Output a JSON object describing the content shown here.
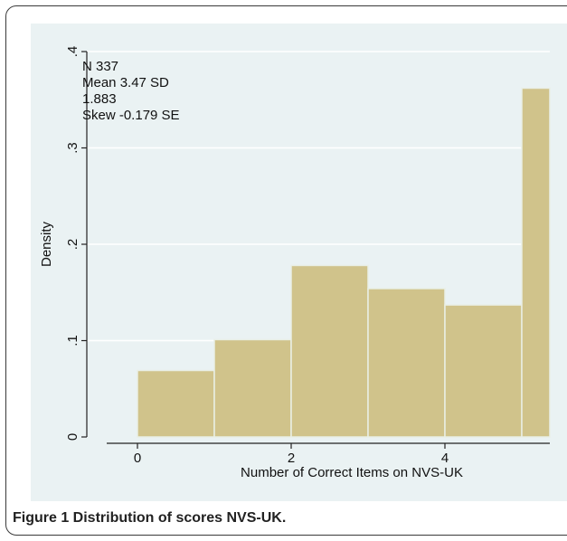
{
  "chart_data": {
    "type": "bar",
    "title": "",
    "xlabel": "Number of Correct Items on NVS-UK",
    "ylabel": "Density",
    "bins": [
      {
        "from": 0,
        "to": 1,
        "value": 0.069
      },
      {
        "from": 1,
        "to": 2,
        "value": 0.101
      },
      {
        "from": 2,
        "to": 3,
        "value": 0.178
      },
      {
        "from": 3,
        "to": 4,
        "value": 0.154
      },
      {
        "from": 4,
        "to": 5,
        "value": 0.137
      },
      {
        "from": 5,
        "to": 6,
        "value": 0.362
      }
    ],
    "xlim": [
      -0.5,
      5.35
    ],
    "ylim": [
      0,
      0.4
    ],
    "xticks": [
      0,
      2,
      4
    ],
    "xtick_labels": [
      "0",
      "2",
      "4"
    ],
    "yticks": [
      0,
      0.1,
      0.2,
      0.3,
      0.4
    ],
    "ytick_labels": [
      "0",
      ".1",
      ".2",
      ".3",
      ".4"
    ],
    "grid": true,
    "bar_color": "#d0c38b",
    "bar_edge_color": "#e9efe6",
    "plot_bg_color": "#eaf2f3",
    "annotation": [
      "N 337",
      "Mean 3.47 SD",
      "1.883",
      "Skew -0.179 SE"
    ]
  },
  "caption": {
    "label": "Figure 1",
    "text": " Distribution of scores NVS-UK."
  }
}
